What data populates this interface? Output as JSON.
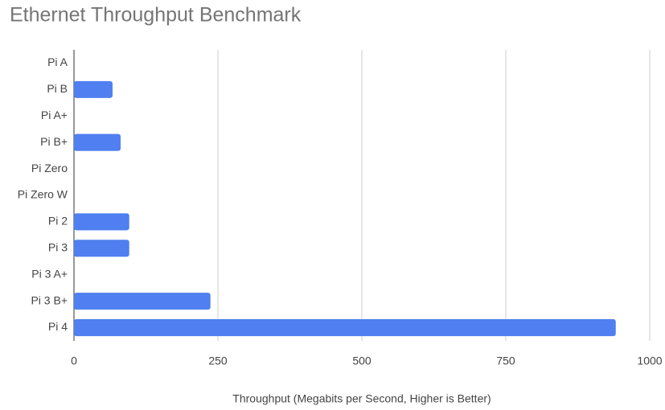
{
  "chart_data": {
    "type": "bar",
    "orientation": "horizontal",
    "title": "Ethernet Throughput Benchmark",
    "x_label": "Throughput (Megabits per Second, Higher is Better)",
    "categories": [
      "Pi A",
      "Pi B",
      "Pi A+",
      "Pi B+",
      "Pi Zero",
      "Pi Zero W",
      "Pi 2",
      "Pi 3",
      "Pi 3 A+",
      "Pi 3 B+",
      "Pi 4"
    ],
    "values": [
      null,
      67,
      null,
      81,
      null,
      null,
      96,
      96,
      null,
      237,
      941
    ],
    "color": "#4f7ff0",
    "xlim": [
      0,
      1000
    ],
    "xticks": [
      0,
      250,
      500,
      750,
      1000
    ],
    "grid": true
  }
}
